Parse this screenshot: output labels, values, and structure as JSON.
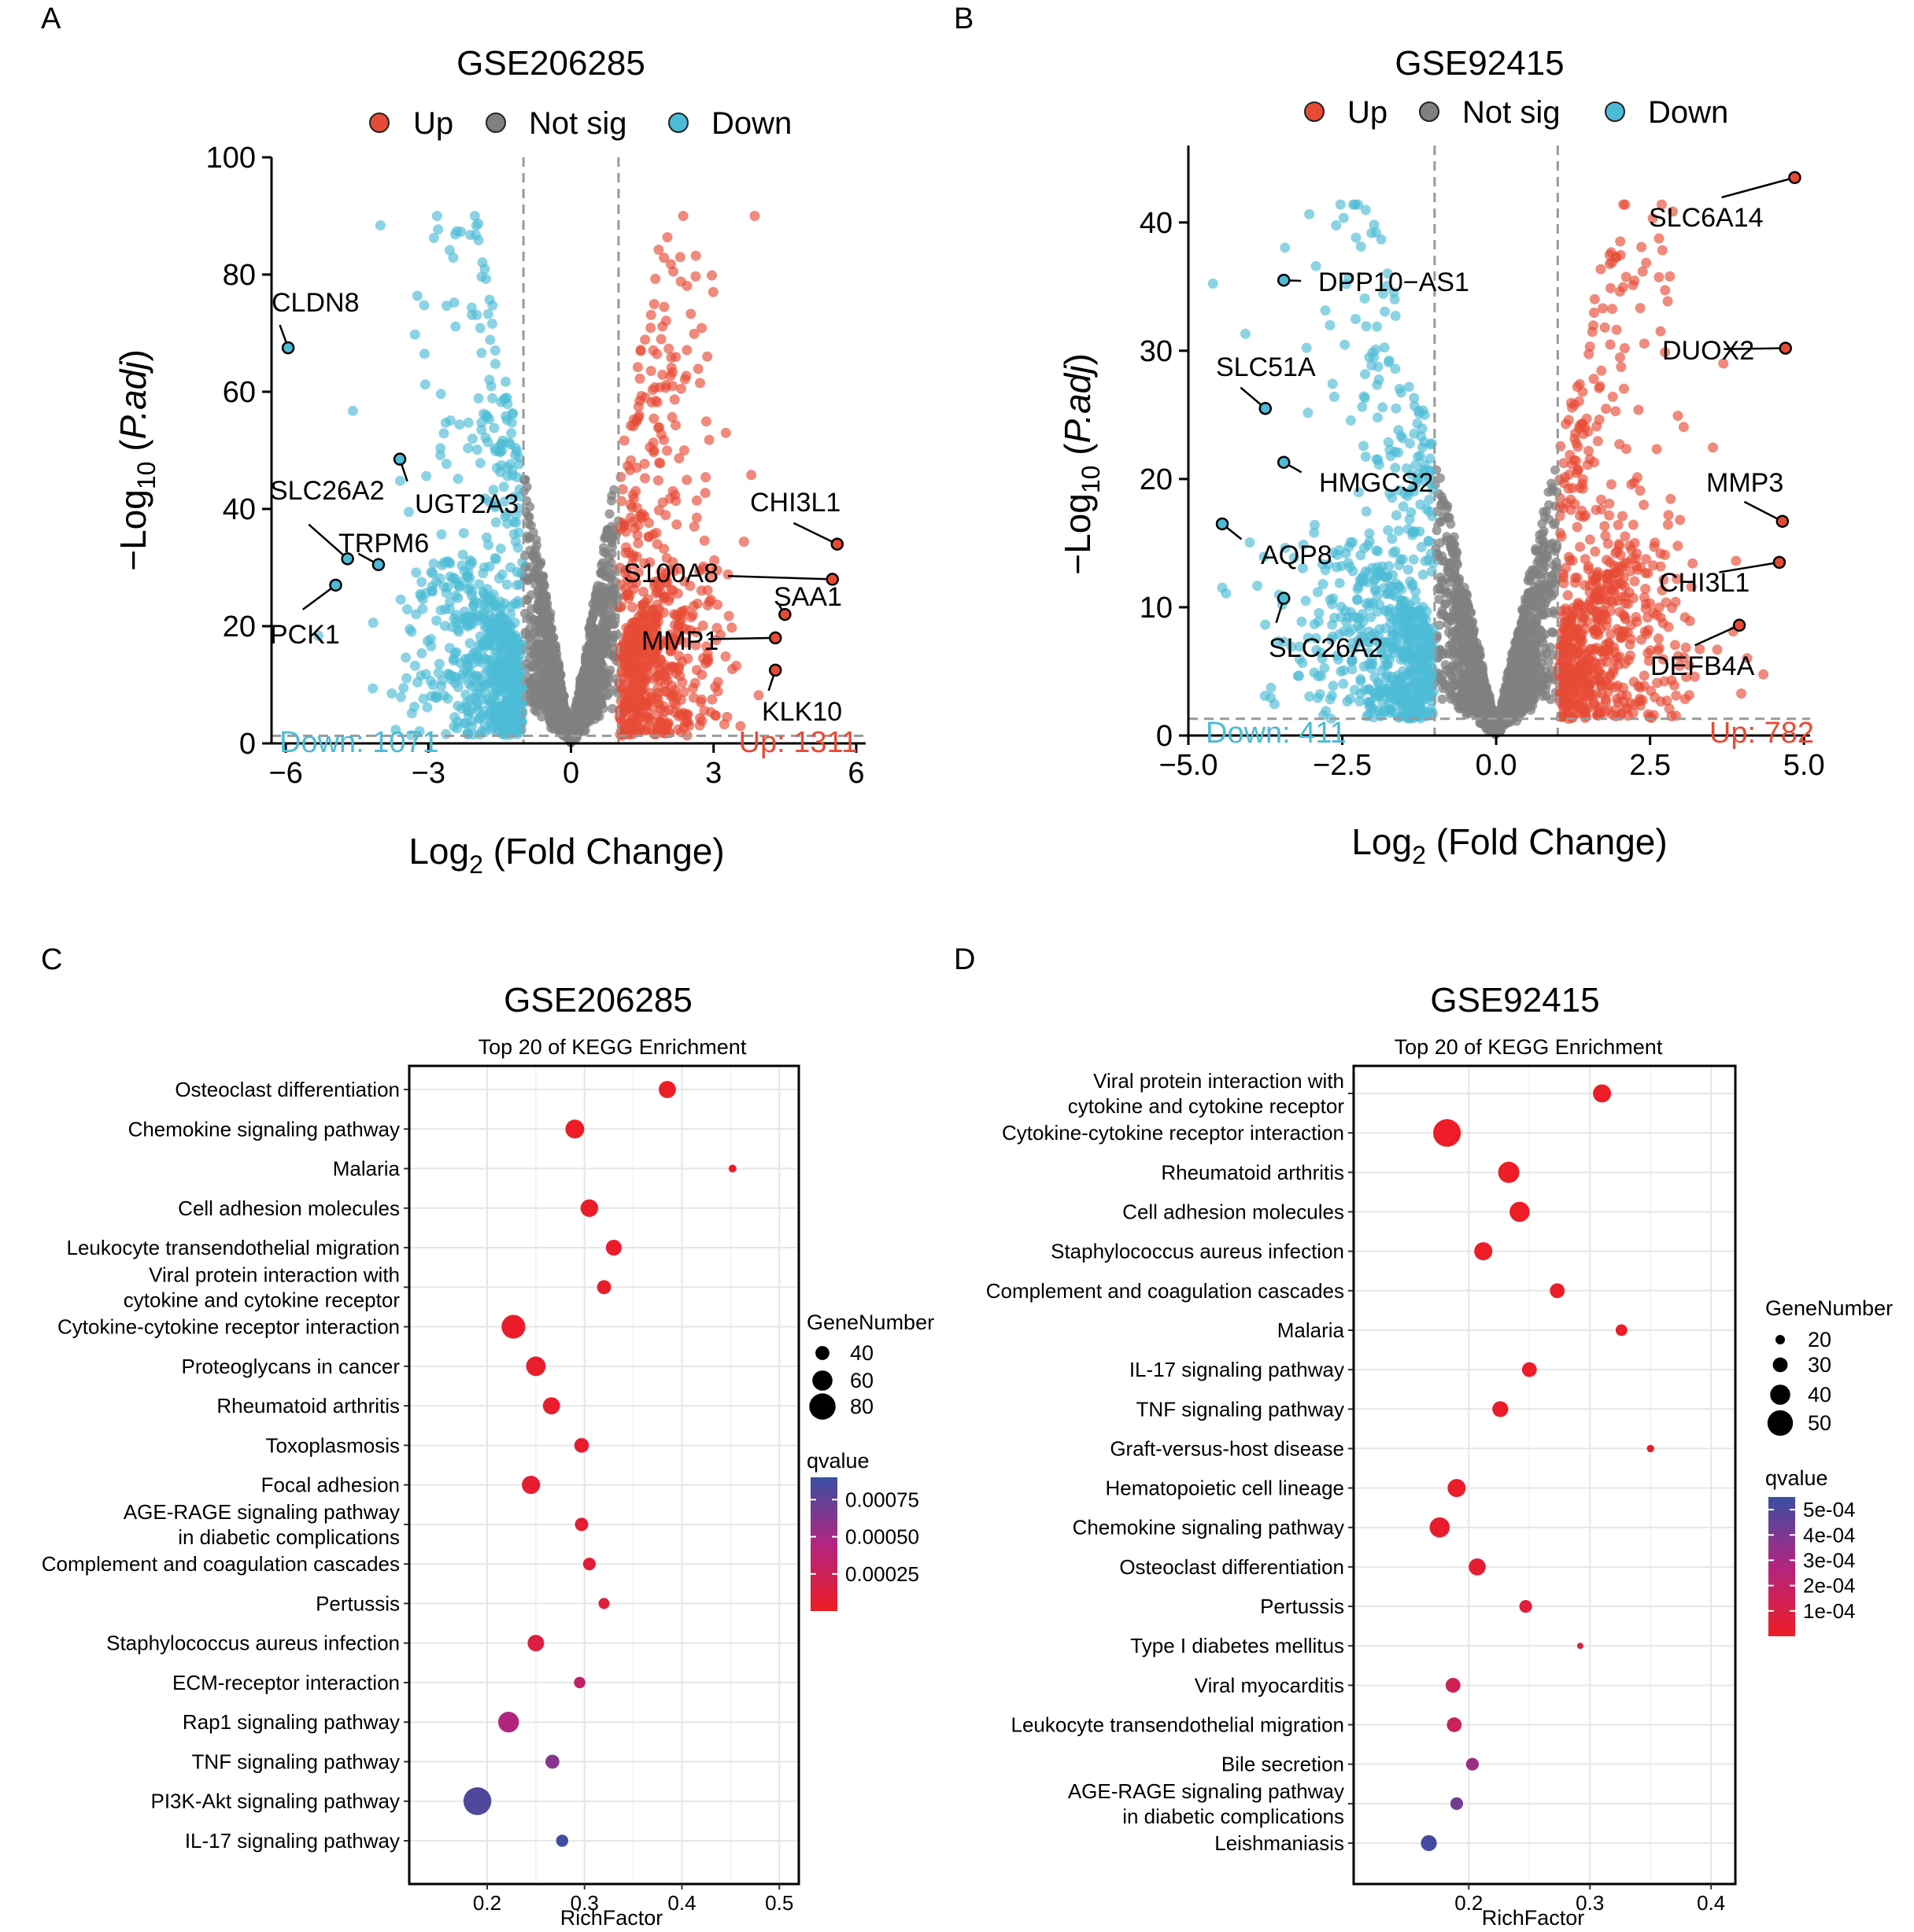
{
  "colors": {
    "up": "#E64B35",
    "notsig": "#808080",
    "down": "#4DBBD5",
    "threshold": "#999999",
    "q_low": "#EE1C25",
    "q_mid": "#B2257F",
    "q_high": "#3A4FA3"
  },
  "panels": {
    "A": "A",
    "B": "B",
    "C": "C",
    "D": "D"
  },
  "volcano_legend": {
    "up": "Up",
    "notsig": "Not sig",
    "down": "Down"
  },
  "kegg_common": {
    "subtitle": "Top 20 of KEGG Enrichment",
    "xlabel": "RichFactor",
    "size_legend_title": "GeneNumber",
    "color_legend_title": "qvalue"
  },
  "chart_data": [
    {
      "type": "scatter",
      "id": "volcanoA",
      "title": "GSE206285",
      "xlabel": "Log2 (Fold Change)",
      "ylabel": "-Log10 (P.adj)",
      "xlim": [
        -6.3,
        6.2
      ],
      "ylim": [
        0,
        100
      ],
      "xticks": [
        -6,
        -3,
        0,
        3,
        6
      ],
      "xtick_labels": [
        "−6",
        "−3",
        "0",
        "3",
        "6"
      ],
      "yticks": [
        0,
        20,
        40,
        60,
        80,
        100
      ],
      "ytick_labels": [
        "0",
        "20",
        "40",
        "60",
        "80",
        "100"
      ],
      "fc_threshold": 1,
      "p_threshold": 1.3,
      "down_count_label": "Down: 1071",
      "up_count_label": "Up: 1311",
      "labeled_genes": [
        {
          "gene": "CLDN8",
          "x": -5.95,
          "y": 67.5,
          "group": "down"
        },
        {
          "gene": "UGT2A3",
          "x": -3.6,
          "y": 48.5,
          "group": "down"
        },
        {
          "gene": "SLC26A2",
          "x": -4.7,
          "y": 31.5,
          "group": "down"
        },
        {
          "gene": "TRPM6",
          "x": -4.05,
          "y": 30.5,
          "group": "down"
        },
        {
          "gene": "PCK1",
          "x": -4.95,
          "y": 27,
          "group": "down"
        },
        {
          "gene": "CHI3L1",
          "x": 5.6,
          "y": 34,
          "group": "up"
        },
        {
          "gene": "S100A8",
          "x": 5.5,
          "y": 28,
          "group": "up"
        },
        {
          "gene": "SAA1",
          "x": 4.5,
          "y": 22,
          "group": "up"
        },
        {
          "gene": "MMP1",
          "x": 4.3,
          "y": 18,
          "group": "up"
        },
        {
          "gene": "KLK10",
          "x": 4.3,
          "y": 12.5,
          "group": "up"
        }
      ]
    },
    {
      "type": "scatter",
      "id": "volcanoB",
      "title": "GSE92415",
      "xlabel": "Log2 (Fold Change)",
      "ylabel": "-Log10 (P.adj)",
      "xlim": [
        -5.0,
        5.1
      ],
      "ylim": [
        0,
        46
      ],
      "xticks": [
        -5,
        -2.5,
        0,
        2.5,
        5
      ],
      "xtick_labels": [
        "−5.0",
        "−2.5",
        "0.0",
        "2.5",
        "5.0"
      ],
      "yticks": [
        0,
        10,
        20,
        30,
        40
      ],
      "ytick_labels": [
        "0",
        "10",
        "20",
        "30",
        "40"
      ],
      "fc_threshold": 1,
      "p_threshold": 1.3,
      "down_count_label": "Down: 411",
      "up_count_label": "Up: 782",
      "labeled_genes": [
        {
          "gene": "DPP10−AS1",
          "x": -3.45,
          "y": 35.5,
          "group": "down"
        },
        {
          "gene": "SLC51A",
          "x": -3.75,
          "y": 25.5,
          "group": "down"
        },
        {
          "gene": "HMGCS2",
          "x": -3.45,
          "y": 21.3,
          "group": "down"
        },
        {
          "gene": "AQP8",
          "x": -4.45,
          "y": 16.5,
          "group": "down"
        },
        {
          "gene": "SLC26A2",
          "x": -3.45,
          "y": 10.7,
          "group": "down"
        },
        {
          "gene": "SLC6A14",
          "x": 4.85,
          "y": 43.5,
          "group": "up"
        },
        {
          "gene": "DUOX2",
          "x": 4.7,
          "y": 30.2,
          "group": "up"
        },
        {
          "gene": "MMP3",
          "x": 4.65,
          "y": 16.7,
          "group": "up"
        },
        {
          "gene": "CHI3L1",
          "x": 4.6,
          "y": 13.5,
          "group": "up"
        },
        {
          "gene": "DEFB4A",
          "x": 3.95,
          "y": 8.6,
          "group": "up"
        }
      ]
    },
    {
      "type": "scatter",
      "id": "keggC",
      "title": "GSE206285",
      "subtitle": "Top 20 of KEGG Enrichment",
      "xlabel": "RichFactor",
      "xlim": [
        0.12,
        0.52
      ],
      "xticks": [
        0.2,
        0.3,
        0.4,
        0.5
      ],
      "xtick_labels": [
        "0.2",
        "0.3",
        "0.4",
        "0.5"
      ],
      "size_legend": {
        "values": [
          40,
          60,
          80
        ],
        "labels": [
          "40",
          "60",
          "80"
        ]
      },
      "color_legend": {
        "min": 0.0,
        "max": 0.0009,
        "ticks": [
          0.00075,
          0.0005,
          0.00025
        ],
        "labels": [
          "0.00075",
          "0.00050",
          "0.00025"
        ]
      },
      "pathways": [
        {
          "label": [
            "Osteoclast differentiation"
          ],
          "rich": 0.385,
          "genes": 50,
          "q": 1e-05
        },
        {
          "label": [
            "Chemokine signaling pathway"
          ],
          "rich": 0.29,
          "genes": 56,
          "q": 1e-05
        },
        {
          "label": [
            "Malaria"
          ],
          "rich": 0.452,
          "genes": 20,
          "q": 1e-05
        },
        {
          "label": [
            "Cell adhesion molecules"
          ],
          "rich": 0.305,
          "genes": 52,
          "q": 2e-05
        },
        {
          "label": [
            "Leukocyte transendothelial migration"
          ],
          "rich": 0.33,
          "genes": 46,
          "q": 2e-05
        },
        {
          "label": [
            "Viral protein interaction with",
            "cytokine and cytokine receptor"
          ],
          "rich": 0.32,
          "genes": 40,
          "q": 2e-05
        },
        {
          "label": [
            "Cytokine-cytokine receptor interaction"
          ],
          "rich": 0.227,
          "genes": 72,
          "q": 2e-05
        },
        {
          "label": [
            "Proteoglycans in cancer"
          ],
          "rich": 0.25,
          "genes": 58,
          "q": 3e-05
        },
        {
          "label": [
            "Rheumatoid arthritis"
          ],
          "rich": 0.266,
          "genes": 50,
          "q": 4e-05
        },
        {
          "label": [
            "Toxoplasmosis"
          ],
          "rich": 0.297,
          "genes": 42,
          "q": 5e-05
        },
        {
          "label": [
            "Focal adhesion"
          ],
          "rich": 0.245,
          "genes": 54,
          "q": 6e-05
        },
        {
          "label": [
            "AGE-RAGE signaling pathway",
            "in diabetic complications"
          ],
          "rich": 0.297,
          "genes": 38,
          "q": 8e-05
        },
        {
          "label": [
            "Complement and coagulation cascades"
          ],
          "rich": 0.305,
          "genes": 36,
          "q": 0.0001
        },
        {
          "label": [
            "Pertussis"
          ],
          "rich": 0.32,
          "genes": 30,
          "q": 0.00012
        },
        {
          "label": [
            "Staphylococcus aureus infection"
          ],
          "rich": 0.25,
          "genes": 48,
          "q": 0.00015
        },
        {
          "label": [
            "ECM-receptor interaction"
          ],
          "rich": 0.295,
          "genes": 32,
          "q": 0.00035
        },
        {
          "label": [
            "Rap1 signaling pathway"
          ],
          "rich": 0.222,
          "genes": 62,
          "q": 0.00045
        },
        {
          "label": [
            "TNF signaling pathway"
          ],
          "rich": 0.267,
          "genes": 40,
          "q": 0.00062
        },
        {
          "label": [
            "PI3K-Akt signaling pathway"
          ],
          "rich": 0.19,
          "genes": 85,
          "q": 0.00082
        },
        {
          "label": [
            "IL-17 signaling pathway"
          ],
          "rich": 0.277,
          "genes": 34,
          "q": 0.00088
        }
      ]
    },
    {
      "type": "scatter",
      "id": "keggD",
      "title": "GSE92415",
      "subtitle": "Top 20 of KEGG Enrichment",
      "xlabel": "RichFactor",
      "xlim": [
        0.105,
        0.42
      ],
      "xticks": [
        0.2,
        0.3,
        0.4
      ],
      "xtick_labels": [
        "0.2",
        "0.3",
        "0.4"
      ],
      "size_legend": {
        "values": [
          20,
          30,
          40,
          50
        ],
        "labels": [
          "20",
          "30",
          "40",
          "50"
        ]
      },
      "color_legend": {
        "min": 0.0,
        "max": 0.00055,
        "ticks": [
          0.0005,
          0.0004,
          0.0003,
          0.0002,
          0.0001
        ],
        "labels": [
          "5e-04",
          "4e-04",
          "3e-04",
          "2e-04",
          "1e-04"
        ]
      },
      "pathways": [
        {
          "label": [
            "Viral protein interaction with",
            "cytokine and cytokine receptor"
          ],
          "rich": 0.31,
          "genes": 36,
          "q": 5e-06
        },
        {
          "label": [
            "Cytokine-cytokine receptor interaction"
          ],
          "rich": 0.182,
          "genes": 54,
          "q": 5e-06
        },
        {
          "label": [
            "Rheumatoid arthritis"
          ],
          "rich": 0.233,
          "genes": 42,
          "q": 5e-06
        },
        {
          "label": [
            "Cell adhesion molecules"
          ],
          "rich": 0.242,
          "genes": 40,
          "q": 5e-06
        },
        {
          "label": [
            "Staphylococcus aureus infection"
          ],
          "rich": 0.212,
          "genes": 36,
          "q": 6e-06
        },
        {
          "label": [
            "Complement and coagulation cascades"
          ],
          "rich": 0.273,
          "genes": 30,
          "q": 8e-06
        },
        {
          "label": [
            "Malaria"
          ],
          "rich": 0.326,
          "genes": 24,
          "q": 1e-05
        },
        {
          "label": [
            "IL-17 signaling pathway"
          ],
          "rich": 0.25,
          "genes": 30,
          "q": 1e-05
        },
        {
          "label": [
            "TNF signaling pathway"
          ],
          "rich": 0.226,
          "genes": 32,
          "q": 1.2e-05
        },
        {
          "label": [
            "Graft-versus-host disease"
          ],
          "rich": 0.35,
          "genes": 16,
          "q": 1.5e-05
        },
        {
          "label": [
            "Hematopoietic cell lineage"
          ],
          "rich": 0.19,
          "genes": 36,
          "q": 2e-05
        },
        {
          "label": [
            "Chemokine signaling pathway"
          ],
          "rich": 0.176,
          "genes": 40,
          "q": 3e-05
        },
        {
          "label": [
            "Osteoclast differentiation"
          ],
          "rich": 0.207,
          "genes": 34,
          "q": 4e-05
        },
        {
          "label": [
            "Pertussis"
          ],
          "rich": 0.247,
          "genes": 26,
          "q": 6e-05
        },
        {
          "label": [
            "Type I diabetes mellitus"
          ],
          "rich": 0.292,
          "genes": 14,
          "q": 9e-05
        },
        {
          "label": [
            "Viral myocarditis"
          ],
          "rich": 0.187,
          "genes": 30,
          "q": 0.00014
        },
        {
          "label": [
            "Leukocyte transendothelial migration"
          ],
          "rich": 0.188,
          "genes": 30,
          "q": 0.00017
        },
        {
          "label": [
            "Bile secretion"
          ],
          "rich": 0.203,
          "genes": 26,
          "q": 0.00033
        },
        {
          "label": [
            "AGE-RAGE signaling pathway",
            "in diabetic complications"
          ],
          "rich": 0.19,
          "genes": 26,
          "q": 0.00042
        },
        {
          "label": [
            "Leishmaniasis"
          ],
          "rich": 0.167,
          "genes": 32,
          "q": 0.00053
        }
      ]
    }
  ]
}
